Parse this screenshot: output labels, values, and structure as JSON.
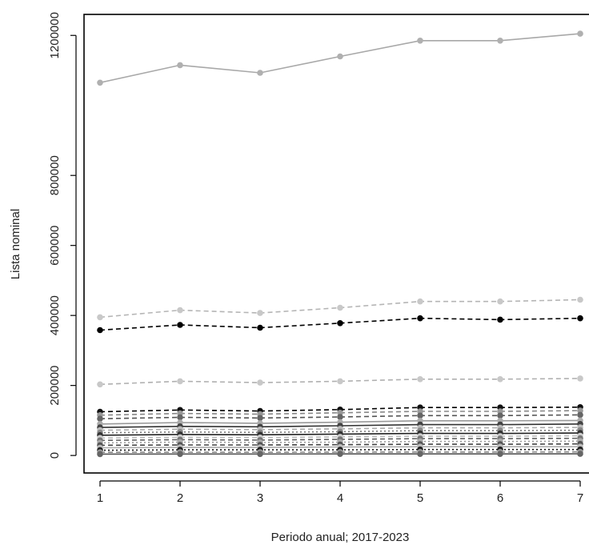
{
  "chart_data": {
    "type": "line",
    "title": "",
    "xlabel": "Periodo anual; 2017-2023",
    "ylabel": "Lista nominal",
    "x": [
      1,
      2,
      3,
      4,
      5,
      6,
      7
    ],
    "x_ticks": [
      "1",
      "2",
      "3",
      "4",
      "5",
      "6",
      "7"
    ],
    "y_ticks": [
      "0",
      "200000",
      "400000",
      "600000",
      "800000",
      "1200000"
    ],
    "y_tick_values": [
      0,
      200000,
      400000,
      600000,
      800000,
      1200000
    ],
    "xlim": [
      0.8,
      7.2
    ],
    "ylim": [
      -50000,
      1260000
    ],
    "grid": false,
    "legend": "none",
    "series": [
      {
        "values": [
          1065000,
          1115000,
          1093000,
          1140000,
          1185000,
          1185000,
          1205000
        ],
        "color": "#a8a8a8",
        "line": "solid",
        "marker": "#b0b0b0"
      },
      {
        "values": [
          395000,
          415000,
          407000,
          422000,
          440000,
          440000,
          445000
        ],
        "color": "#b5b5b5",
        "line": "dashed",
        "marker": "#c8c8c8"
      },
      {
        "values": [
          358000,
          373000,
          365000,
          378000,
          392000,
          388000,
          392000
        ],
        "color": "#000000",
        "line": "dashed",
        "marker": "#000000"
      },
      {
        "values": [
          203000,
          212000,
          208000,
          212000,
          218000,
          218000,
          220000
        ],
        "color": "#b0b0b0",
        "line": "dashed",
        "marker": "#c8c8c8"
      },
      {
        "values": [
          125000,
          130000,
          127000,
          131000,
          137000,
          137000,
          138000
        ],
        "color": "#000000",
        "line": "dashed",
        "marker": "#111111"
      },
      {
        "values": [
          115000,
          120000,
          118000,
          122000,
          126000,
          126000,
          128000
        ],
        "color": "#888888",
        "line": "dashed",
        "marker": "#999999"
      },
      {
        "values": [
          105000,
          109000,
          107000,
          110000,
          114000,
          114000,
          116000
        ],
        "color": "#555555",
        "line": "dashed",
        "marker": "#666666"
      },
      {
        "values": [
          90000,
          94000,
          92000,
          95000,
          99000,
          99000,
          100000
        ],
        "color": "#999999",
        "line": "solid",
        "marker": "#aaaaaa"
      },
      {
        "values": [
          80000,
          83000,
          82000,
          85000,
          88000,
          88000,
          90000
        ],
        "color": "#333333",
        "line": "solid",
        "marker": "#444444"
      },
      {
        "values": [
          72000,
          75000,
          74000,
          76000,
          79000,
          79000,
          80000
        ],
        "color": "#aaaaaa",
        "line": "dashed",
        "marker": "#bbbbbb"
      },
      {
        "values": [
          65000,
          67000,
          66000,
          68000,
          71000,
          71000,
          72000
        ],
        "color": "#777777",
        "line": "dotted",
        "marker": "#888888"
      },
      {
        "values": [
          58000,
          60000,
          59000,
          61000,
          63000,
          63000,
          64000
        ],
        "color": "#222222",
        "line": "solid",
        "marker": "#333333"
      },
      {
        "values": [
          50000,
          52000,
          51000,
          53000,
          55000,
          55000,
          56000
        ],
        "color": "#bbbbbb",
        "line": "dashed",
        "marker": "#cccccc"
      },
      {
        "values": [
          43000,
          45000,
          44000,
          46000,
          48000,
          48000,
          49000
        ],
        "color": "#666666",
        "line": "dashed",
        "marker": "#777777"
      },
      {
        "values": [
          36000,
          38000,
          37000,
          38000,
          40000,
          40000,
          41000
        ],
        "color": "#999999",
        "line": "dotted",
        "marker": "#aaaaaa"
      },
      {
        "values": [
          29000,
          30000,
          30000,
          31000,
          32000,
          32000,
          33000
        ],
        "color": "#444444",
        "line": "dashed",
        "marker": "#555555"
      },
      {
        "values": [
          22000,
          23000,
          23000,
          24000,
          25000,
          25000,
          25000
        ],
        "color": "#aaaaaa",
        "line": "solid",
        "marker": "#bbbbbb"
      },
      {
        "values": [
          15000,
          16000,
          16000,
          16000,
          17000,
          17000,
          17000
        ],
        "color": "#111111",
        "line": "dotted",
        "marker": "#222222"
      },
      {
        "values": [
          9000,
          9500,
          9300,
          9700,
          10000,
          10000,
          10200
        ],
        "color": "#888888",
        "line": "dashed",
        "marker": "#999999"
      },
      {
        "values": [
          4000,
          4200,
          4100,
          4300,
          4500,
          4500,
          4600
        ],
        "color": "#555555",
        "line": "solid",
        "marker": "#666666"
      }
    ]
  }
}
